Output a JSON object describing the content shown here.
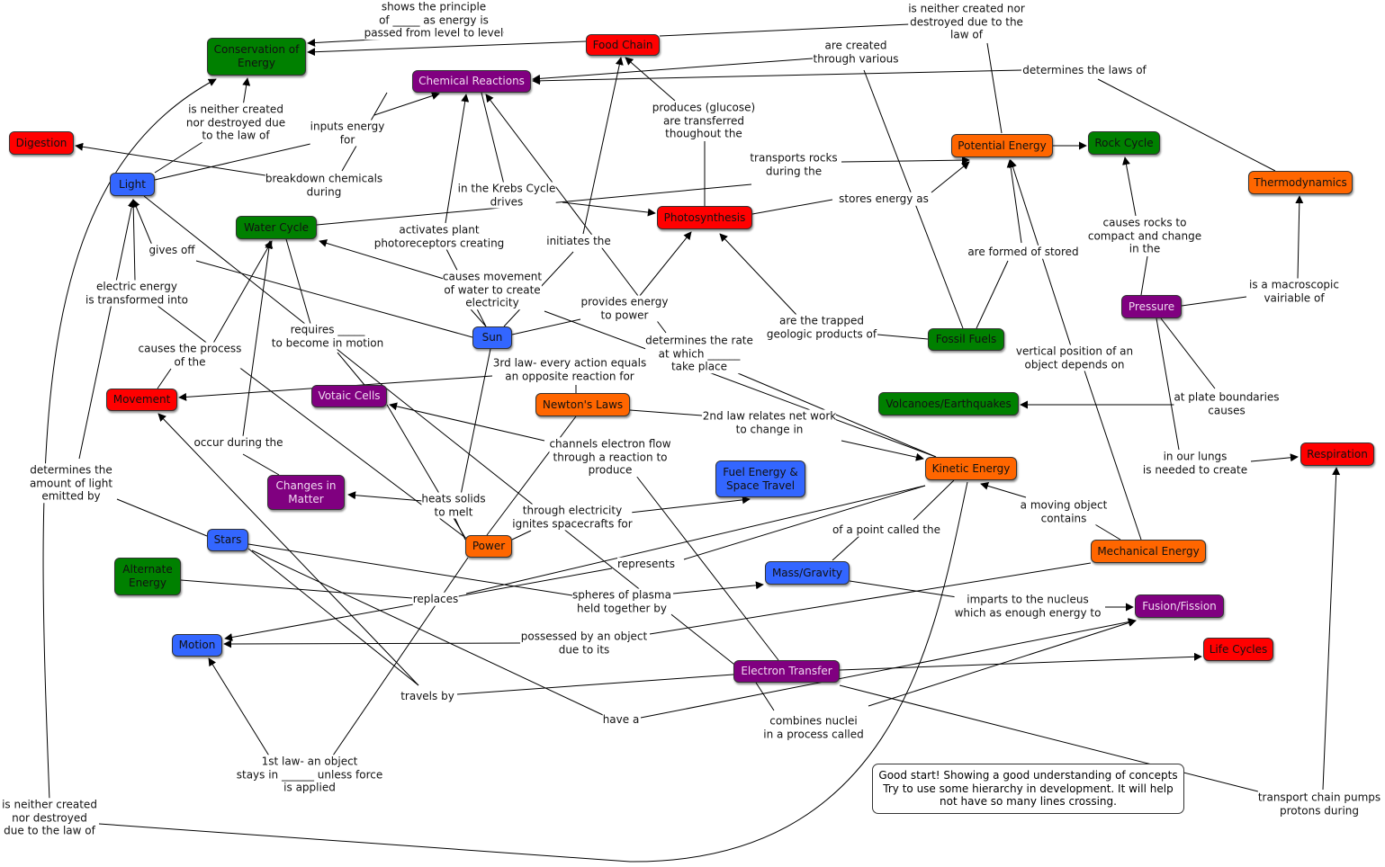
{
  "nodes": [
    {
      "label": "Conservation of Energy",
      "color": "#008000"
    },
    {
      "label": "Food Chain",
      "color": "#ff0000"
    },
    {
      "label": "Chemical Reactions",
      "color": "#800080"
    },
    {
      "label": "Digestion",
      "color": "#ff0000"
    },
    {
      "label": "Light",
      "color": "#3366ff"
    },
    {
      "label": "Water Cycle",
      "color": "#008000"
    },
    {
      "label": "Photosynthesis",
      "color": "#ff0000"
    },
    {
      "label": "Potential Energy",
      "color": "#ff6600"
    },
    {
      "label": "Rock Cycle",
      "color": "#008000"
    },
    {
      "label": "Thermodynamics",
      "color": "#ff6600"
    },
    {
      "label": "Pressure",
      "color": "#800080"
    },
    {
      "label": "Fossil Fuels",
      "color": "#008000"
    },
    {
      "label": "Sun",
      "color": "#3366ff"
    },
    {
      "label": "Movement",
      "color": "#ff0000"
    },
    {
      "label": "Votaic Cells",
      "color": "#800080"
    },
    {
      "label": "Newton's Laws",
      "color": "#ff6600"
    },
    {
      "label": "Volcanoes/Earthquakes",
      "color": "#008000"
    },
    {
      "label": "Kinetic Energy",
      "color": "#ff6600"
    },
    {
      "label": "Respiration",
      "color": "#ff0000"
    },
    {
      "label": "Fuel Energy & Space Travel",
      "color": "#3366ff"
    },
    {
      "label": "Changes in Matter",
      "color": "#800080"
    },
    {
      "label": "Power",
      "color": "#ff6600"
    },
    {
      "label": "Stars",
      "color": "#3366ff"
    },
    {
      "label": "Alternate Energy",
      "color": "#008000"
    },
    {
      "label": "Mass/Gravity",
      "color": "#3366ff"
    },
    {
      "label": "Mechanical Energy",
      "color": "#ff6600"
    },
    {
      "label": "Fusion/Fission",
      "color": "#800080"
    },
    {
      "label": "Motion",
      "color": "#3366ff"
    },
    {
      "label": "Life Cycles",
      "color": "#ff0000"
    },
    {
      "label": "Electron Transfer",
      "color": "#800080"
    }
  ],
  "links": [
    "shows the principle\nof _____ as energy is\npassed from level to level",
    "is neither created nor\ndestroyed due to the\nlaw of",
    "are created\nthrough various",
    "determines the laws of",
    "is neither created\nnor destroyed due\nto the law of",
    "inputs energy\nfor",
    "produces (glucose)\nare transferred\nthoughout the",
    "transports rocks\nduring the",
    "breakdown chemicals\nduring",
    "in the Krebs Cycle\ndrives",
    "stores energy as",
    "causes rocks to\ncompact and change\nin the",
    "activates plant\nphotoreceptors creating",
    "initiates the",
    "gives off",
    "are formed of stored",
    "causes movement\nof water to create\nelectricity",
    "electric energy\nis transformed into",
    "is a macroscopic\nvairiable of",
    "provides energy\nto power",
    "are the trapped\ngeologic products of",
    "requires _____\nto become in motion",
    "determines the rate\nat which ______\ntake place",
    "causes the process\nof the",
    "vertical position of an\nobject depends on",
    "3rd law- every action equals\nan opposite reaction for",
    "at plate boundaries\ncauses",
    "2nd law relates net work\nto change in",
    "occur during the",
    "channels electron flow\nthrough a reaction to\nproduce",
    "in our lungs\nis needed to create",
    "determines the\namount of light\nemitted by",
    "heats solids\nto melt",
    "a moving object\ncontains",
    "through electricity\nignites spacecrafts for",
    "of a point called the",
    "represents",
    "spheres of plasma\nheld together by",
    "replaces",
    "imparts to the nucleus\nwhich as enough energy to",
    "possessed by an object\ndue to its",
    "travels by",
    "have a",
    "combines nuclei\nin a process called",
    "1st law- an object\nstays in ______ unless force\nis applied",
    "is neither created\nnor destroyed\ndue to the law of",
    "transport chain pumps\nprotons during"
  ],
  "comment": "Good start! Showing a good understanding of concepts\nTry to use some hierarchy in development. It will help\nnot have so many lines crossing."
}
